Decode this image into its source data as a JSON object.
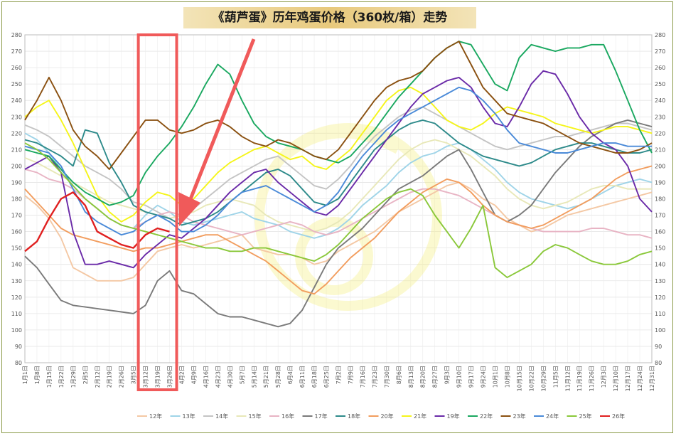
{
  "chart_data": {
    "type": "line",
    "title": "《葫芦蛋》历年鸡蛋价格（360枚/箱）走势",
    "ylim": [
      80,
      280
    ],
    "y_ticks": [
      80,
      90,
      100,
      110,
      120,
      130,
      140,
      150,
      160,
      170,
      180,
      190,
      200,
      210,
      220,
      230,
      240,
      250,
      260,
      270,
      280
    ],
    "x_ticks": [
      "1月1日",
      "1月8日",
      "1月15日",
      "1月22日",
      "1月29日",
      "2月5日",
      "2月12日",
      "2月19日",
      "2月26日",
      "3月5日",
      "3月12日",
      "3月19日",
      "3月26日",
      "4月2日",
      "4月9日",
      "4月16日",
      "4月23日",
      "4月30日",
      "5月7日",
      "5月14日",
      "5月21日",
      "5月28日",
      "6月4日",
      "6月11日",
      "6月18日",
      "6月25日",
      "7月2日",
      "7月9日",
      "7月16日",
      "7月23日",
      "7月30日",
      "8月6日",
      "8月13日",
      "8月20日",
      "8月27日",
      "9月3日",
      "9月10日",
      "9月17日",
      "9月24日",
      "10月1日",
      "10月8日",
      "10月15日",
      "10月22日",
      "10月29日",
      "11月5日",
      "11月12日",
      "11月19日",
      "11月26日",
      "12月3日",
      "12月10日",
      "12月17日",
      "12月24日",
      "12月31日"
    ],
    "grid": true,
    "legend_position": "bottom",
    "series": [
      {
        "name": "12年",
        "color": "#f4c8a4",
        "values": [
          182,
          176,
          168,
          156,
          138,
          134,
          130,
          130,
          130,
          132,
          140,
          148,
          150,
          152,
          150,
          152,
          154,
          156,
          158,
          150,
          148,
          146,
          146,
          144,
          140,
          142,
          148,
          152,
          156,
          160,
          166,
          172,
          176,
          180,
          184,
          188,
          190,
          186,
          180,
          176,
          168,
          164,
          160,
          162,
          166,
          170,
          172,
          174,
          176,
          178,
          180,
          182,
          184
        ]
      },
      {
        "name": "13年",
        "color": "#9fd4e8",
        "values": [
          220,
          216,
          208,
          198,
          188,
          180,
          174,
          168,
          164,
          162,
          170,
          176,
          172,
          166,
          164,
          166,
          168,
          170,
          172,
          168,
          166,
          164,
          160,
          158,
          156,
          158,
          162,
          168,
          176,
          182,
          188,
          196,
          202,
          206,
          208,
          212,
          214,
          210,
          204,
          198,
          190,
          184,
          180,
          178,
          176,
          174,
          176,
          180,
          184,
          188,
          190,
          192,
          190
        ]
      },
      {
        "name": "14年",
        "color": "#c4c4c4",
        "values": [
          225,
          222,
          218,
          212,
          206,
          200,
          196,
          192,
          186,
          178,
          176,
          172,
          168,
          170,
          174,
          180,
          186,
          192,
          196,
          200,
          204,
          206,
          200,
          194,
          188,
          186,
          192,
          200,
          210,
          218,
          224,
          230,
          234,
          236,
          232,
          228,
          224,
          220,
          216,
          212,
          210,
          212,
          214,
          216,
          218,
          218,
          220,
          222,
          224,
          226,
          226,
          224,
          222
        ]
      },
      {
        "name": "15年",
        "color": "#e8e8b8",
        "values": [
          205,
          202,
          198,
          194,
          190,
          186,
          182,
          178,
          176,
          174,
          172,
          170,
          168,
          170,
          172,
          176,
          178,
          180,
          178,
          176,
          170,
          166,
          164,
          162,
          160,
          162,
          166,
          172,
          180,
          188,
          196,
          204,
          210,
          214,
          216,
          214,
          210,
          206,
          200,
          194,
          186,
          180,
          176,
          174,
          176,
          178,
          182,
          186,
          188,
          188,
          186,
          186,
          186
        ]
      },
      {
        "name": "16年",
        "color": "#e8b4c4",
        "values": [
          198,
          196,
          192,
          190,
          186,
          180,
          174,
          168,
          164,
          162,
          166,
          170,
          172,
          170,
          166,
          164,
          162,
          160,
          158,
          160,
          162,
          164,
          166,
          164,
          160,
          158,
          160,
          164,
          168,
          172,
          176,
          180,
          184,
          186,
          186,
          184,
          182,
          178,
          174,
          170,
          166,
          164,
          162,
          160,
          160,
          160,
          160,
          162,
          162,
          160,
          158,
          158,
          156
        ]
      },
      {
        "name": "17年",
        "color": "#7a7a7a",
        "values": [
          145,
          138,
          128,
          118,
          115,
          114,
          113,
          112,
          111,
          110,
          115,
          130,
          136,
          124,
          122,
          116,
          110,
          108,
          108,
          106,
          104,
          102,
          104,
          112,
          126,
          140,
          150,
          156,
          162,
          170,
          178,
          186,
          190,
          194,
          200,
          206,
          210,
          198,
          184,
          170,
          166,
          170,
          176,
          186,
          196,
          204,
          212,
          218,
          222,
          226,
          228,
          226,
          224
        ]
      },
      {
        "name": "18年",
        "color": "#2d8a8a",
        "values": [
          216,
          214,
          210,
          206,
          200,
          222,
          220,
          202,
          190,
          176,
          172,
          170,
          168,
          164,
          166,
          168,
          172,
          178,
          184,
          190,
          196,
          198,
          194,
          186,
          178,
          176,
          180,
          190,
          200,
          210,
          216,
          222,
          226,
          228,
          226,
          220,
          214,
          210,
          206,
          204,
          202,
          200,
          202,
          206,
          210,
          212,
          214,
          214,
          212,
          210,
          208,
          208,
          210
        ]
      },
      {
        "name": "20年",
        "color": "#f29d5e",
        "values": [
          186,
          178,
          170,
          162,
          158,
          156,
          154,
          152,
          150,
          148,
          150,
          150,
          152,
          154,
          156,
          158,
          158,
          154,
          150,
          146,
          142,
          136,
          130,
          124,
          122,
          128,
          136,
          144,
          150,
          156,
          164,
          172,
          178,
          184,
          188,
          192,
          190,
          184,
          176,
          170,
          166,
          164,
          162,
          164,
          168,
          172,
          176,
          180,
          186,
          192,
          196,
          198,
          200
        ]
      },
      {
        "name": "21年",
        "color": "#f5f51a",
        "values": [
          230,
          236,
          240,
          228,
          214,
          198,
          182,
          172,
          166,
          170,
          178,
          184,
          182,
          176,
          180,
          188,
          196,
          202,
          206,
          210,
          212,
          208,
          204,
          206,
          200,
          198,
          204,
          210,
          220,
          230,
          240,
          246,
          248,
          244,
          236,
          228,
          224,
          222,
          226,
          232,
          236,
          234,
          232,
          230,
          226,
          224,
          222,
          220,
          222,
          224,
          224,
          222,
          220
        ]
      },
      {
        "name": "19年",
        "color": "#6a2aa8",
        "values": [
          198,
          202,
          206,
          196,
          160,
          140,
          140,
          142,
          140,
          138,
          146,
          152,
          158,
          156,
          162,
          168,
          176,
          184,
          190,
          196,
          198,
          190,
          184,
          178,
          172,
          170,
          176,
          186,
          196,
          206,
          216,
          226,
          236,
          244,
          248,
          252,
          254,
          248,
          236,
          226,
          224,
          236,
          250,
          258,
          256,
          244,
          230,
          220,
          214,
          210,
          200,
          180,
          172
        ]
      },
      {
        "name": "22年",
        "color": "#1aa860",
        "values": [
          210,
          208,
          206,
          198,
          190,
          184,
          180,
          176,
          178,
          182,
          196,
          206,
          214,
          224,
          236,
          250,
          262,
          256,
          240,
          226,
          218,
          214,
          212,
          210,
          206,
          204,
          202,
          206,
          214,
          222,
          232,
          242,
          250,
          258,
          266,
          272,
          276,
          274,
          262,
          250,
          246,
          266,
          274,
          272,
          270,
          272,
          272,
          274,
          274,
          258,
          240,
          222,
          208
        ]
      },
      {
        "name": "23年",
        "color": "#8a5010",
        "values": [
          228,
          240,
          254,
          240,
          222,
          212,
          206,
          198,
          208,
          218,
          228,
          228,
          222,
          220,
          222,
          226,
          228,
          224,
          218,
          214,
          212,
          216,
          214,
          210,
          206,
          204,
          210,
          220,
          230,
          240,
          248,
          252,
          254,
          258,
          266,
          272,
          276,
          262,
          248,
          240,
          232,
          230,
          228,
          226,
          222,
          218,
          214,
          212,
          210,
          208,
          208,
          210,
          214
        ]
      },
      {
        "name": "24年",
        "color": "#4a8ad8",
        "values": [
          212,
          210,
          208,
          200,
          186,
          172,
          166,
          162,
          158,
          160,
          166,
          170,
          166,
          160,
          160,
          164,
          170,
          178,
          184,
          186,
          188,
          184,
          180,
          176,
          172,
          176,
          184,
          196,
          206,
          214,
          222,
          228,
          232,
          236,
          240,
          244,
          248,
          246,
          240,
          232,
          222,
          214,
          212,
          210,
          208,
          208,
          210,
          212,
          214,
          214,
          212,
          212,
          212
        ]
      },
      {
        "name": "25年",
        "color": "#8ac83a",
        "values": [
          214,
          210,
          204,
          196,
          188,
          180,
          174,
          168,
          164,
          162,
          160,
          158,
          156,
          154,
          152,
          150,
          150,
          148,
          148,
          150,
          150,
          148,
          146,
          144,
          142,
          146,
          152,
          160,
          168,
          174,
          180,
          184,
          186,
          182,
          170,
          160,
          150,
          162,
          176,
          138,
          132,
          136,
          140,
          148,
          152,
          150,
          146,
          142,
          140,
          140,
          142,
          146,
          148
        ]
      },
      {
        "name": "26年",
        "color": "#e02020",
        "values": [
          148,
          154,
          168,
          180,
          184,
          176,
          160,
          156,
          152,
          150,
          158,
          162,
          160
        ]
      }
    ]
  },
  "legend": {
    "items": [
      {
        "name": "12年",
        "color": "#f4c8a4"
      },
      {
        "name": "13年",
        "color": "#9fd4e8"
      },
      {
        "name": "14年",
        "color": "#c4c4c4"
      },
      {
        "name": "15年",
        "color": "#e8e8b8"
      },
      {
        "name": "16年",
        "color": "#e8b4c4"
      },
      {
        "name": "17年",
        "color": "#7a7a7a"
      },
      {
        "name": "18年",
        "color": "#2d8a8a"
      },
      {
        "name": "20年",
        "color": "#f29d5e"
      },
      {
        "name": "21年",
        "color": "#f5f51a"
      },
      {
        "name": "19年",
        "color": "#6a2aa8"
      },
      {
        "name": "22年",
        "color": "#1aa860"
      },
      {
        "name": "23年",
        "color": "#8a5010"
      },
      {
        "name": "24年",
        "color": "#4a8ad8"
      },
      {
        "name": "25年",
        "color": "#8ac83a"
      },
      {
        "name": "26年",
        "color": "#e02020"
      }
    ]
  },
  "annotation": {
    "highlight_color": "#f05a5a",
    "highlight_range": [
      "3月12日",
      "3月26日"
    ],
    "arrow_color": "#f05a5a"
  }
}
